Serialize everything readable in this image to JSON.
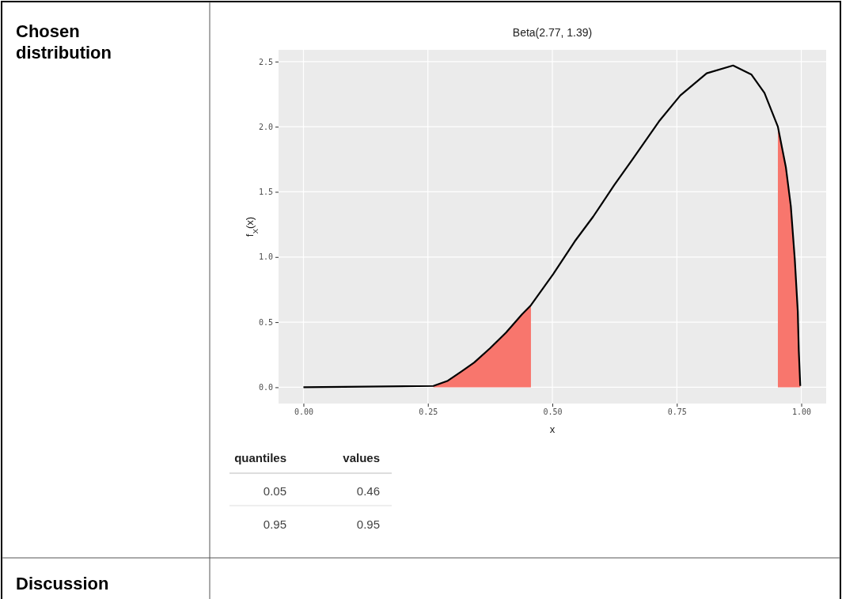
{
  "chart_data": {
    "type": "line",
    "title": "Beta(2.77, 1.39)",
    "xlabel": "x",
    "ylabel": "f$_{X}$(x)",
    "xlim": [
      -0.05,
      1.05
    ],
    "ylim": [
      -0.125,
      2.59
    ],
    "xticks": [
      {
        "value": 0,
        "label": "0.00"
      },
      {
        "value": 0.25,
        "label": "0.25"
      },
      {
        "value": 0.5,
        "label": "0.50"
      },
      {
        "value": 0.75,
        "label": "0.75"
      },
      {
        "value": 1,
        "label": "1.00"
      }
    ],
    "yticks": [
      {
        "value": 0,
        "label": "0.0"
      },
      {
        "value": 0.5,
        "label": "0.5"
      },
      {
        "value": 1,
        "label": "1.0"
      },
      {
        "value": 1.5,
        "label": "1.5"
      },
      {
        "value": 2,
        "label": "2.0"
      },
      {
        "value": 2.5,
        "label": "2.5"
      }
    ],
    "grid": true,
    "series": [
      {
        "type": "area",
        "color": "#f8766d",
        "x": [
          0.261,
          0.29,
          0.317,
          0.343,
          0.375,
          0.407,
          0.439,
          0.457
        ],
        "values": [
          0.01,
          0.05,
          0.12,
          0.19,
          0.3,
          0.42,
          0.56,
          0.63
        ]
      },
      {
        "type": "area",
        "color": "#f8766d",
        "x": [
          0.953,
          0.969,
          0.979,
          0.987,
          0.993,
          0.995,
          0.998
        ],
        "values": [
          2.0,
          1.69,
          1.39,
          0.98,
          0.58,
          0.28,
          0.01
        ]
      },
      {
        "type": "line",
        "color": "#000000",
        "x": [
          0,
          0.261,
          0.29,
          0.317,
          0.343,
          0.375,
          0.407,
          0.439,
          0.457,
          0.502,
          0.545,
          0.582,
          0.624,
          0.661,
          0.714,
          0.757,
          0.81,
          0.863,
          0.9,
          0.926,
          0.953,
          0.969,
          0.979,
          0.987,
          0.993,
          0.995,
          0.998
        ],
        "values": [
          0,
          0.01,
          0.05,
          0.12,
          0.19,
          0.3,
          0.42,
          0.56,
          0.63,
          0.87,
          1.12,
          1.31,
          1.55,
          1.75,
          2.04,
          2.24,
          2.41,
          2.47,
          2.4,
          2.26,
          2.0,
          1.69,
          1.39,
          0.98,
          0.58,
          0.28,
          0.01
        ]
      }
    ],
    "annotations": [
      "Chosen distribution",
      "Discussion",
      "quantiles",
      "values",
      "0.05",
      "0.46",
      "0.95",
      "0.95"
    ]
  }
}
